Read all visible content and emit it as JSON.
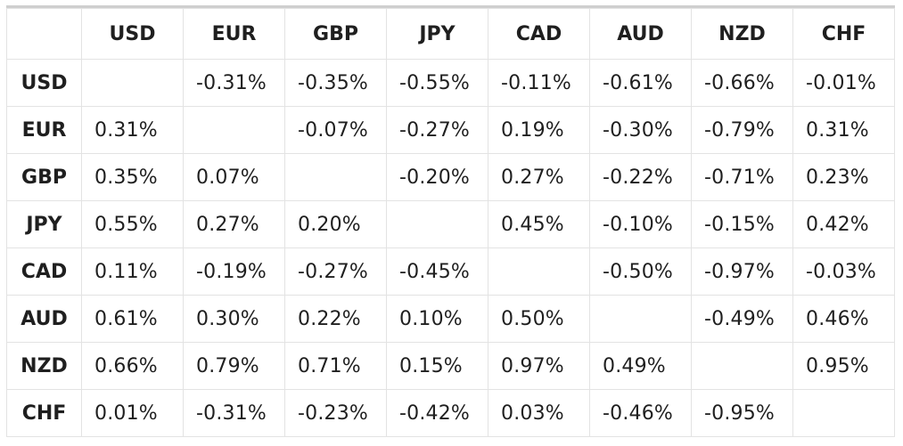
{
  "chart_data": {
    "type": "table",
    "columns": [
      "USD",
      "EUR",
      "GBP",
      "JPY",
      "CAD",
      "AUD",
      "NZD",
      "CHF"
    ],
    "rows": [
      {
        "label": "USD",
        "cells": [
          "",
          "-0.31%",
          "-0.35%",
          "-0.55%",
          "-0.11%",
          "-0.61%",
          "-0.66%",
          "-0.01%"
        ]
      },
      {
        "label": "EUR",
        "cells": [
          "0.31%",
          "",
          "-0.07%",
          "-0.27%",
          "0.19%",
          "-0.30%",
          "-0.79%",
          "0.31%"
        ]
      },
      {
        "label": "GBP",
        "cells": [
          "0.35%",
          "0.07%",
          "",
          "-0.20%",
          "0.27%",
          "-0.22%",
          "-0.71%",
          "0.23%"
        ]
      },
      {
        "label": "JPY",
        "cells": [
          "0.55%",
          "0.27%",
          "0.20%",
          "",
          "0.45%",
          "-0.10%",
          "-0.15%",
          "0.42%"
        ]
      },
      {
        "label": "CAD",
        "cells": [
          "0.11%",
          "-0.19%",
          "-0.27%",
          "-0.45%",
          "",
          "-0.50%",
          "-0.97%",
          "-0.03%"
        ]
      },
      {
        "label": "AUD",
        "cells": [
          "0.61%",
          "0.30%",
          "0.22%",
          "0.10%",
          "0.50%",
          "",
          "-0.49%",
          "0.46%"
        ]
      },
      {
        "label": "NZD",
        "cells": [
          "0.66%",
          "0.79%",
          "0.71%",
          "0.15%",
          "0.97%",
          "0.49%",
          "",
          "0.95%"
        ]
      },
      {
        "label": "CHF",
        "cells": [
          "0.01%",
          "-0.31%",
          "-0.23%",
          "-0.42%",
          "0.03%",
          "-0.46%",
          "-0.95%",
          ""
        ]
      }
    ]
  },
  "colors": {
    "border": "#e3e3e3",
    "top_rule": "#cfcfcf",
    "text": "#1f1f1f",
    "background": "#ffffff"
  }
}
